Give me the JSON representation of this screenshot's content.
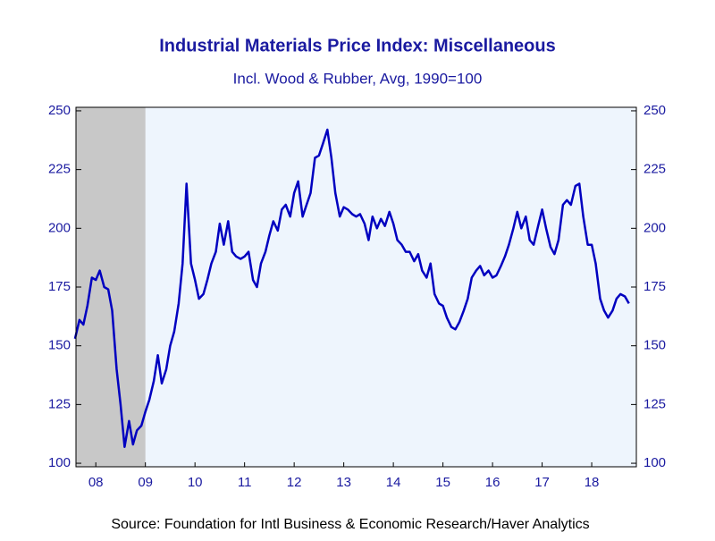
{
  "chart_data": {
    "type": "line",
    "title": "Industrial Materials Price Index: Miscellaneous",
    "subtitle": "Incl. Wood & Rubber, Avg, 1990=100",
    "source": "Source:  Foundation for Intl Business & Economic Research/Haver Analytics",
    "xlim": [
      2008.1,
      2019.4
    ],
    "ylim": [
      98.5,
      251.5
    ],
    "y2lim": [
      98.5,
      251.5
    ],
    "yticks": [
      100,
      125,
      150,
      175,
      200,
      225,
      250
    ],
    "y2ticks": [
      100,
      125,
      150,
      175,
      200,
      225,
      250
    ],
    "xticks": [
      {
        "value": 2008.5,
        "label": "08"
      },
      {
        "value": 2009.5,
        "label": "09"
      },
      {
        "value": 2010.5,
        "label": "10"
      },
      {
        "value": 2011.5,
        "label": "11"
      },
      {
        "value": 2012.5,
        "label": "12"
      },
      {
        "value": 2013.5,
        "label": "13"
      },
      {
        "value": 2014.5,
        "label": "14"
      },
      {
        "value": 2015.5,
        "label": "15"
      },
      {
        "value": 2016.5,
        "label": "16"
      },
      {
        "value": 2017.5,
        "label": "17"
      },
      {
        "value": 2018.5,
        "label": "18"
      }
    ],
    "recession": {
      "start": 2007.92,
      "end": 2009.5,
      "color": "#c8c8c8"
    },
    "series": [
      {
        "color": "#0000c0",
        "x": [
          2008.08,
          2008.17,
          2008.25,
          2008.33,
          2008.42,
          2008.5,
          2008.58,
          2008.67,
          2008.75,
          2008.83,
          2008.92,
          2009.0,
          2009.08,
          2009.17,
          2009.25,
          2009.33,
          2009.42,
          2009.5,
          2009.58,
          2009.67,
          2009.75,
          2009.83,
          2009.92,
          2010.0,
          2010.08,
          2010.17,
          2010.25,
          2010.33,
          2010.42,
          2010.5,
          2010.58,
          2010.67,
          2010.75,
          2010.83,
          2010.92,
          2011.0,
          2011.08,
          2011.17,
          2011.25,
          2011.33,
          2011.42,
          2011.5,
          2011.58,
          2011.67,
          2011.75,
          2011.83,
          2011.92,
          2012.0,
          2012.08,
          2012.17,
          2012.25,
          2012.33,
          2012.42,
          2012.5,
          2012.58,
          2012.67,
          2012.75,
          2012.83,
          2012.92,
          2013.0,
          2013.08,
          2013.17,
          2013.25,
          2013.33,
          2013.42,
          2013.5,
          2013.58,
          2013.67,
          2013.75,
          2013.83,
          2013.92,
          2014.0,
          2014.08,
          2014.17,
          2014.25,
          2014.33,
          2014.42,
          2014.5,
          2014.58,
          2014.67,
          2014.75,
          2014.83,
          2014.92,
          2015.0,
          2015.08,
          2015.17,
          2015.25,
          2015.33,
          2015.42,
          2015.5,
          2015.58,
          2015.67,
          2015.75,
          2015.83,
          2015.92,
          2016.0,
          2016.08,
          2016.17,
          2016.25,
          2016.33,
          2016.42,
          2016.5,
          2016.58,
          2016.67,
          2016.75,
          2016.83,
          2016.92,
          2017.0,
          2017.08,
          2017.17,
          2017.25,
          2017.33,
          2017.42,
          2017.5,
          2017.58,
          2017.67,
          2017.75,
          2017.83,
          2017.92,
          2018.0,
          2018.08,
          2018.17,
          2018.25,
          2018.33,
          2018.42,
          2018.5,
          2018.58,
          2018.67,
          2018.75,
          2018.83,
          2018.92,
          2019.0,
          2019.08,
          2019.17,
          2019.25
        ],
        "values": [
          153,
          161,
          159,
          167,
          179,
          178,
          182,
          175,
          174,
          165,
          140,
          125,
          107,
          118,
          108,
          114,
          116,
          122,
          127,
          135,
          146,
          134,
          140,
          150,
          156,
          168,
          185,
          219,
          185,
          178,
          170,
          172,
          178,
          185,
          190,
          202,
          193,
          203,
          190,
          188,
          187,
          188,
          190,
          178,
          175,
          185,
          190,
          197,
          203,
          199,
          208,
          210,
          205,
          215,
          220,
          205,
          210,
          215,
          230,
          231,
          236,
          242,
          230,
          215,
          205,
          209,
          208,
          206,
          205,
          206,
          202,
          195,
          205,
          200,
          204,
          201,
          207,
          202,
          195,
          193,
          190,
          190,
          186,
          189,
          182,
          179,
          185,
          172,
          168,
          167,
          162,
          158,
          157,
          160,
          165,
          170,
          179,
          182,
          184,
          180,
          182,
          179,
          180,
          184,
          188,
          193,
          200,
          207,
          200,
          205,
          195,
          193,
          201,
          208,
          200,
          192,
          189,
          195,
          210,
          212,
          210,
          218,
          219,
          205,
          193,
          193,
          185,
          170,
          165,
          162,
          165,
          170,
          172,
          171,
          168
        ]
      }
    ]
  }
}
